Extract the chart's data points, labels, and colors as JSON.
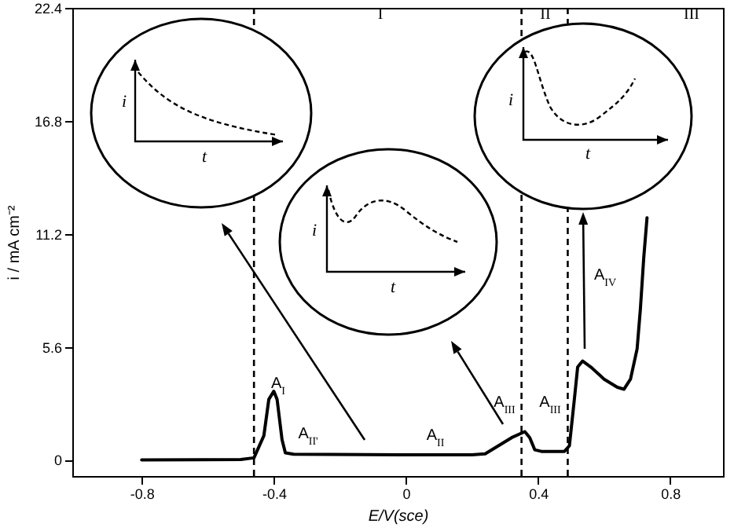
{
  "chart_data": {
    "type": "line",
    "xlabel": "E/V(sce)",
    "ylabel": "i / mA cm⁻²",
    "x": [
      -0.8,
      -0.5,
      -0.46,
      -0.43,
      -0.415,
      -0.4,
      -0.39,
      -0.375,
      -0.365,
      -0.34,
      0,
      0.2,
      0.24,
      0.28,
      0.32,
      0.36,
      0.375,
      0.39,
      0.41,
      0.48,
      0.495,
      0.51,
      0.52,
      0.535,
      0.56,
      0.6,
      0.64,
      0.66,
      0.68,
      0.7,
      0.71,
      0.72,
      0.73
    ],
    "series": [
      {
        "color": "#000000",
        "values": [
          0,
          0.02,
          0.1,
          1.2,
          3.0,
          3.4,
          3.0,
          1.0,
          0.35,
          0.28,
          0.25,
          0.25,
          0.3,
          0.7,
          1.1,
          1.4,
          1.1,
          0.5,
          0.42,
          0.42,
          0.7,
          3,
          4.6,
          4.9,
          4.6,
          4.0,
          3.6,
          3.5,
          4.0,
          5.5,
          7.5,
          10.0,
          12.0
        ]
      }
    ],
    "xlim": [
      -1.01,
      0.96
    ],
    "ylim": [
      -0.8,
      22.4
    ],
    "xticks": [
      -0.8,
      -0.4,
      0,
      0.4,
      0.8
    ],
    "yticks": [
      0,
      5.6,
      11.2,
      16.8,
      22.4
    ],
    "ref_lines": [
      {
        "axis": "x",
        "value": -0.46,
        "line_style": "dashed"
      },
      {
        "axis": "x",
        "value": 0.35,
        "line_style": "dashed"
      },
      {
        "axis": "x",
        "value": 0.49,
        "line_style": "dashed"
      }
    ],
    "annotations": [
      "A$_{I}$",
      "A$_{II'}$",
      "A$_{II}$",
      "A$_{III}$",
      "A$_{III}$",
      "A$_{IV}$",
      "I",
      "II",
      "III",
      "i",
      "t",
      "i",
      "t",
      "i",
      "t"
    ]
  }
}
